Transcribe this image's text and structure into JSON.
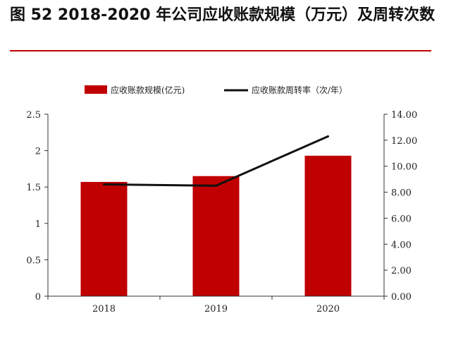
{
  "title": "图 52 2018-2020 年公司应收账款规模（万元）及周转次数",
  "colors": {
    "accent": "#c00000",
    "bar": "#c00000",
    "line": "#111111"
  },
  "chart_data": {
    "type": "bar",
    "categories": [
      "2018",
      "2019",
      "2020"
    ],
    "series": [
      {
        "name": "应收账款规模(亿元)",
        "type": "bar",
        "axis": "left",
        "values": [
          1.57,
          1.65,
          1.93
        ]
      },
      {
        "name": "应收账款周转率（次/年）",
        "type": "line",
        "axis": "right",
        "values": [
          8.6,
          8.5,
          12.3
        ]
      }
    ],
    "y_left": {
      "lim": [
        0,
        2.5
      ],
      "ticks": [
        "0",
        "0.5",
        "1",
        "1.5",
        "2",
        "2.5"
      ]
    },
    "y_right": {
      "lim": [
        0,
        14
      ],
      "ticks": [
        "0.00",
        "2.00",
        "4.00",
        "6.00",
        "8.00",
        "10.00",
        "12.00",
        "14.00"
      ]
    },
    "legend_position": "top-center",
    "grid": false
  }
}
